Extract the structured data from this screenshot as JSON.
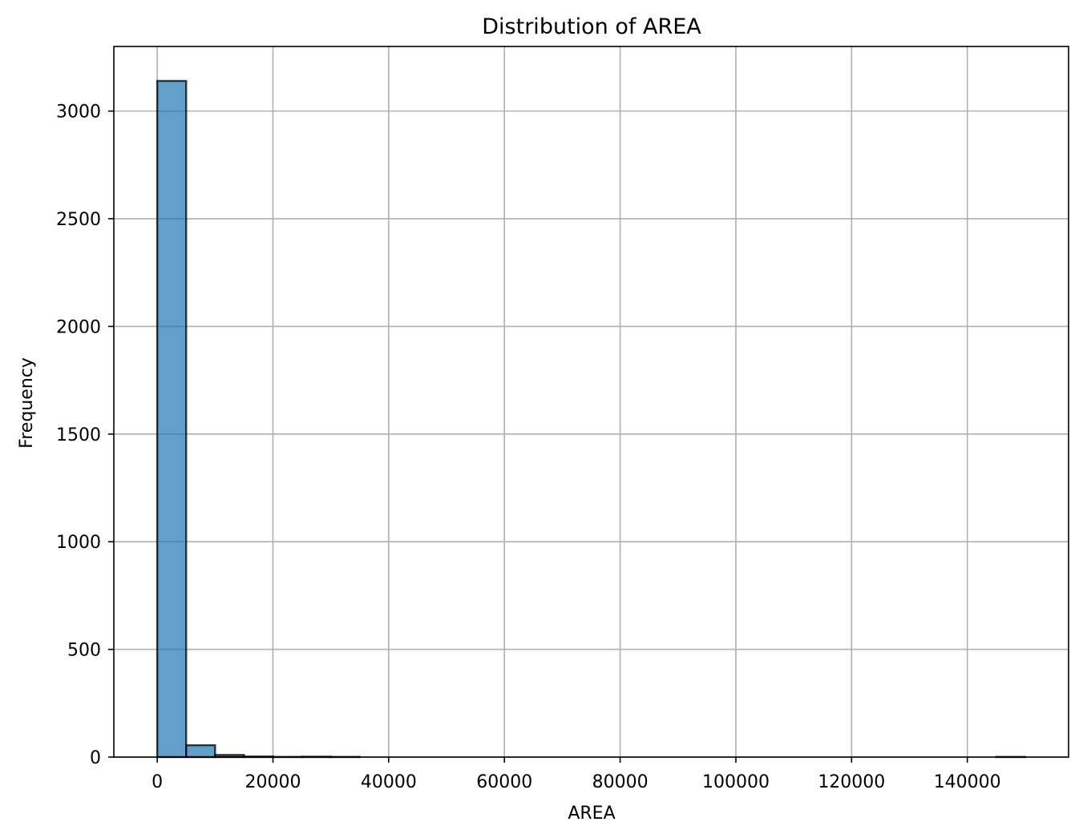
{
  "chart_data": {
    "type": "bar",
    "title": "Distribution of AREA",
    "xlabel": "AREA",
    "ylabel": "Frequency",
    "bin_width": 5000,
    "bins": [
      {
        "start": 0,
        "end": 5000,
        "count": 3140
      },
      {
        "start": 5000,
        "end": 10000,
        "count": 55
      },
      {
        "start": 10000,
        "end": 15000,
        "count": 10
      },
      {
        "start": 15000,
        "end": 20000,
        "count": 3
      },
      {
        "start": 20000,
        "end": 25000,
        "count": 1
      },
      {
        "start": 25000,
        "end": 30000,
        "count": 2
      },
      {
        "start": 30000,
        "end": 35000,
        "count": 1
      },
      {
        "start": 35000,
        "end": 40000,
        "count": 0
      },
      {
        "start": 40000,
        "end": 45000,
        "count": 0
      },
      {
        "start": 45000,
        "end": 50000,
        "count": 0
      },
      {
        "start": 50000,
        "end": 55000,
        "count": 0
      },
      {
        "start": 55000,
        "end": 60000,
        "count": 0
      },
      {
        "start": 60000,
        "end": 65000,
        "count": 0
      },
      {
        "start": 65000,
        "end": 70000,
        "count": 0
      },
      {
        "start": 70000,
        "end": 75000,
        "count": 0
      },
      {
        "start": 75000,
        "end": 80000,
        "count": 0
      },
      {
        "start": 80000,
        "end": 85000,
        "count": 0
      },
      {
        "start": 85000,
        "end": 90000,
        "count": 0
      },
      {
        "start": 90000,
        "end": 95000,
        "count": 0
      },
      {
        "start": 95000,
        "end": 100000,
        "count": 0
      },
      {
        "start": 100000,
        "end": 105000,
        "count": 0
      },
      {
        "start": 105000,
        "end": 110000,
        "count": 0
      },
      {
        "start": 110000,
        "end": 115000,
        "count": 0
      },
      {
        "start": 115000,
        "end": 120000,
        "count": 0
      },
      {
        "start": 120000,
        "end": 125000,
        "count": 0
      },
      {
        "start": 125000,
        "end": 130000,
        "count": 0
      },
      {
        "start": 130000,
        "end": 135000,
        "count": 0
      },
      {
        "start": 135000,
        "end": 140000,
        "count": 0
      },
      {
        "start": 140000,
        "end": 145000,
        "count": 0
      },
      {
        "start": 145000,
        "end": 150000,
        "count": 1
      }
    ],
    "xlim": [
      -7500,
      157500
    ],
    "ylim": [
      0,
      3300
    ],
    "x_ticks": [
      0,
      20000,
      40000,
      60000,
      80000,
      100000,
      120000,
      140000
    ],
    "x_tick_labels": [
      "0",
      "20000",
      "40000",
      "60000",
      "80000",
      "100000",
      "120000",
      "140000"
    ],
    "y_ticks": [
      0,
      500,
      1000,
      1500,
      2000,
      2500,
      3000
    ],
    "y_tick_labels": [
      "0",
      "500",
      "1000",
      "1500",
      "2000",
      "2500",
      "3000"
    ],
    "grid": true,
    "colors": {
      "bar_fill": "#1f77b4",
      "bar_fill_opacity": 0.7,
      "bar_edge": "#000000",
      "grid": "#b0b0b0",
      "axes": "#000000"
    }
  }
}
